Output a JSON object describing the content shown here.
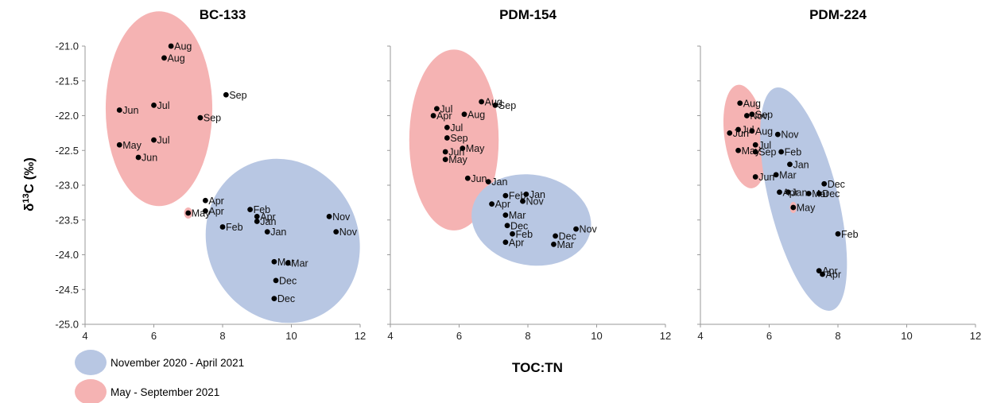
{
  "figure": {
    "ylabel": "δ13C (‰)",
    "xlabel": "TOC:TN",
    "legend": [
      {
        "label": "November 2020 - April 2021",
        "color": "#b8c7e3"
      },
      {
        "label": "May - September 2021",
        "color": "#f5b3b3"
      }
    ]
  },
  "chart_data": [
    {
      "type": "scatter",
      "title": "BC-133",
      "xlim": [
        4,
        12
      ],
      "ylim": [
        -25.0,
        -21.0
      ],
      "x_ticks": [
        4,
        6,
        8,
        10,
        12
      ],
      "y_ticks": [
        "-21.0",
        "-21.5",
        "-22.0",
        "-22.5",
        "-23.0",
        "-23.5",
        "-24.0",
        "-24.5",
        "-25.0"
      ],
      "points": [
        {
          "x": 6.5,
          "y": -21.0,
          "label": "Aug"
        },
        {
          "x": 6.3,
          "y": -21.17,
          "label": "Aug"
        },
        {
          "x": 8.1,
          "y": -21.7,
          "label": "Sep"
        },
        {
          "x": 6.0,
          "y": -21.85,
          "label": "Jul"
        },
        {
          "x": 5.0,
          "y": -21.92,
          "label": "Jun"
        },
        {
          "x": 7.35,
          "y": -22.03,
          "label": "Sep"
        },
        {
          "x": 6.0,
          "y": -22.35,
          "label": "Jul"
        },
        {
          "x": 5.0,
          "y": -22.42,
          "label": "May"
        },
        {
          "x": 5.55,
          "y": -22.6,
          "label": "Jun"
        },
        {
          "x": 7.5,
          "y": -23.22,
          "label": "Apr"
        },
        {
          "x": 8.8,
          "y": -23.35,
          "label": "Feb"
        },
        {
          "x": 7.5,
          "y": -23.37,
          "label": "Apr"
        },
        {
          "x": 7.0,
          "y": -23.4,
          "label": "May"
        },
        {
          "x": 9.0,
          "y": -23.45,
          "label": "Apr"
        },
        {
          "x": 9.0,
          "y": -23.52,
          "label": "Jan"
        },
        {
          "x": 11.1,
          "y": -23.45,
          "label": "Nov"
        },
        {
          "x": 8.0,
          "y": -23.6,
          "label": "Feb"
        },
        {
          "x": 9.3,
          "y": -23.67,
          "label": "Jan"
        },
        {
          "x": 11.3,
          "y": -23.67,
          "label": "Nov"
        },
        {
          "x": 9.5,
          "y": -24.1,
          "label": "Mar"
        },
        {
          "x": 9.9,
          "y": -24.12,
          "label": "Mar"
        },
        {
          "x": 9.55,
          "y": -24.37,
          "label": "Dec"
        },
        {
          "x": 9.5,
          "y": -24.63,
          "label": "Dec"
        }
      ]
    },
    {
      "type": "scatter",
      "title": "PDM-154",
      "xlim": [
        4,
        12
      ],
      "ylim": [
        -25.0,
        -21.0
      ],
      "x_ticks": [
        4,
        6,
        8,
        10,
        12
      ],
      "points": [
        {
          "x": 6.65,
          "y": -21.8,
          "label": "Aug"
        },
        {
          "x": 7.05,
          "y": -21.85,
          "label": "Sep"
        },
        {
          "x": 5.35,
          "y": -21.9,
          "label": "Jul"
        },
        {
          "x": 5.25,
          "y": -22.0,
          "label": "Apr"
        },
        {
          "x": 6.15,
          "y": -21.98,
          "label": "Aug"
        },
        {
          "x": 5.65,
          "y": -22.17,
          "label": "Jul"
        },
        {
          "x": 5.65,
          "y": -22.32,
          "label": "Sep"
        },
        {
          "x": 6.1,
          "y": -22.47,
          "label": "May"
        },
        {
          "x": 5.6,
          "y": -22.52,
          "label": "Jun"
        },
        {
          "x": 5.6,
          "y": -22.63,
          "label": "May"
        },
        {
          "x": 6.25,
          "y": -22.9,
          "label": "Jun"
        },
        {
          "x": 6.85,
          "y": -22.95,
          "label": "Jan"
        },
        {
          "x": 7.35,
          "y": -23.15,
          "label": "Feb"
        },
        {
          "x": 7.95,
          "y": -23.13,
          "label": "Jan"
        },
        {
          "x": 6.95,
          "y": -23.27,
          "label": "Apr"
        },
        {
          "x": 7.85,
          "y": -23.23,
          "label": "Nov"
        },
        {
          "x": 7.35,
          "y": -23.43,
          "label": "Mar"
        },
        {
          "x": 7.4,
          "y": -23.58,
          "label": "Dec"
        },
        {
          "x": 9.4,
          "y": -23.63,
          "label": "Nov"
        },
        {
          "x": 7.55,
          "y": -23.7,
          "label": "Feb"
        },
        {
          "x": 8.8,
          "y": -23.73,
          "label": "Dec"
        },
        {
          "x": 7.35,
          "y": -23.82,
          "label": "Apr"
        },
        {
          "x": 8.75,
          "y": -23.85,
          "label": "Mar"
        }
      ]
    },
    {
      "type": "scatter",
      "title": "PDM-224",
      "xlim": [
        4,
        12
      ],
      "ylim": [
        -25.0,
        -21.0
      ],
      "x_ticks": [
        4,
        6,
        8,
        10,
        12
      ],
      "points": [
        {
          "x": 5.15,
          "y": -21.82,
          "label": "Aug"
        },
        {
          "x": 5.35,
          "y": -22.0,
          "label": "Nov"
        },
        {
          "x": 5.5,
          "y": -21.98,
          "label": "Sep"
        },
        {
          "x": 5.1,
          "y": -22.2,
          "label": "Jul"
        },
        {
          "x": 5.5,
          "y": -22.22,
          "label": "Aug"
        },
        {
          "x": 4.85,
          "y": -22.25,
          "label": "Jun"
        },
        {
          "x": 6.25,
          "y": -22.27,
          "label": "Nov"
        },
        {
          "x": 5.6,
          "y": -22.42,
          "label": "Jul"
        },
        {
          "x": 5.1,
          "y": -22.5,
          "label": "May"
        },
        {
          "x": 6.35,
          "y": -22.52,
          "label": "Feb"
        },
        {
          "x": 5.6,
          "y": -22.52,
          "label": "Sep"
        },
        {
          "x": 6.6,
          "y": -22.7,
          "label": "Jan"
        },
        {
          "x": 6.2,
          "y": -22.85,
          "label": "Mar"
        },
        {
          "x": 5.6,
          "y": -22.88,
          "label": "Jun"
        },
        {
          "x": 7.6,
          "y": -22.98,
          "label": "Dec"
        },
        {
          "x": 6.55,
          "y": -23.1,
          "label": "Jan"
        },
        {
          "x": 6.3,
          "y": -23.1,
          "label": "Apr"
        },
        {
          "x": 7.15,
          "y": -23.12,
          "label": "Mar"
        },
        {
          "x": 7.45,
          "y": -23.12,
          "label": "Dec"
        },
        {
          "x": 6.7,
          "y": -23.32,
          "label": "May"
        },
        {
          "x": 8.0,
          "y": -23.7,
          "label": "Feb"
        },
        {
          "x": 7.45,
          "y": -24.23,
          "label": "Apr"
        },
        {
          "x": 7.55,
          "y": -24.28,
          "label": "Apr"
        }
      ]
    }
  ]
}
